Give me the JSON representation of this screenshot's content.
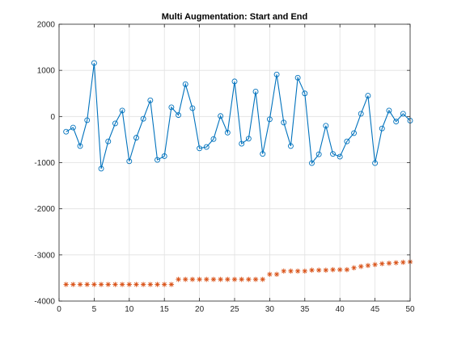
{
  "chart_data": {
    "type": "line",
    "title": "Multi Augmentation: Start and End",
    "xlabel": "",
    "ylabel": "",
    "xlim": [
      0,
      50
    ],
    "ylim": [
      -4000,
      2000
    ],
    "xticks": [
      0,
      5,
      10,
      15,
      20,
      25,
      30,
      35,
      40,
      45,
      50
    ],
    "yticks": [
      -4000,
      -3000,
      -2000,
      -1000,
      0,
      1000,
      2000
    ],
    "grid": true,
    "series": [
      {
        "color": "#0072BD",
        "marker": "circle",
        "line": true,
        "x": [
          1,
          2,
          3,
          4,
          5,
          6,
          7,
          8,
          9,
          10,
          11,
          12,
          13,
          14,
          15,
          16,
          17,
          18,
          19,
          20,
          21,
          22,
          23,
          24,
          25,
          26,
          27,
          28,
          29,
          30,
          31,
          32,
          33,
          34,
          35,
          36,
          37,
          38,
          39,
          40,
          41,
          42,
          43,
          44,
          45,
          46,
          47,
          48,
          49,
          50
        ],
        "values": [
          -330,
          -240,
          -640,
          -80,
          1160,
          -1130,
          -540,
          -150,
          130,
          -970,
          -460,
          -50,
          350,
          -940,
          -860,
          200,
          30,
          700,
          180,
          -690,
          -660,
          -490,
          10,
          -350,
          760,
          -590,
          -480,
          540,
          -810,
          -60,
          910,
          -130,
          -640,
          840,
          500,
          -1010,
          -820,
          -200,
          -810,
          -870,
          -540,
          -360,
          60,
          450,
          -1010,
          -260,
          130,
          -110,
          60,
          -90
        ]
      },
      {
        "color": "#D95319",
        "marker": "asterisk",
        "line": false,
        "x": [
          1,
          2,
          3,
          4,
          5,
          6,
          7,
          8,
          9,
          10,
          11,
          12,
          13,
          14,
          15,
          16,
          17,
          18,
          19,
          20,
          21,
          22,
          23,
          24,
          25,
          26,
          27,
          28,
          29,
          30,
          31,
          32,
          33,
          34,
          35,
          36,
          37,
          38,
          39,
          40,
          41,
          42,
          43,
          44,
          45,
          46,
          47,
          48,
          49,
          50
        ],
        "values": [
          -3640,
          -3640,
          -3640,
          -3640,
          -3640,
          -3640,
          -3640,
          -3640,
          -3640,
          -3640,
          -3640,
          -3640,
          -3640,
          -3640,
          -3640,
          -3640,
          -3530,
          -3530,
          -3530,
          -3530,
          -3530,
          -3530,
          -3530,
          -3530,
          -3530,
          -3530,
          -3530,
          -3530,
          -3530,
          -3420,
          -3420,
          -3350,
          -3350,
          -3350,
          -3350,
          -3330,
          -3330,
          -3330,
          -3320,
          -3320,
          -3320,
          -3280,
          -3250,
          -3230,
          -3210,
          -3190,
          -3180,
          -3170,
          -3160,
          -3150
        ]
      }
    ]
  }
}
